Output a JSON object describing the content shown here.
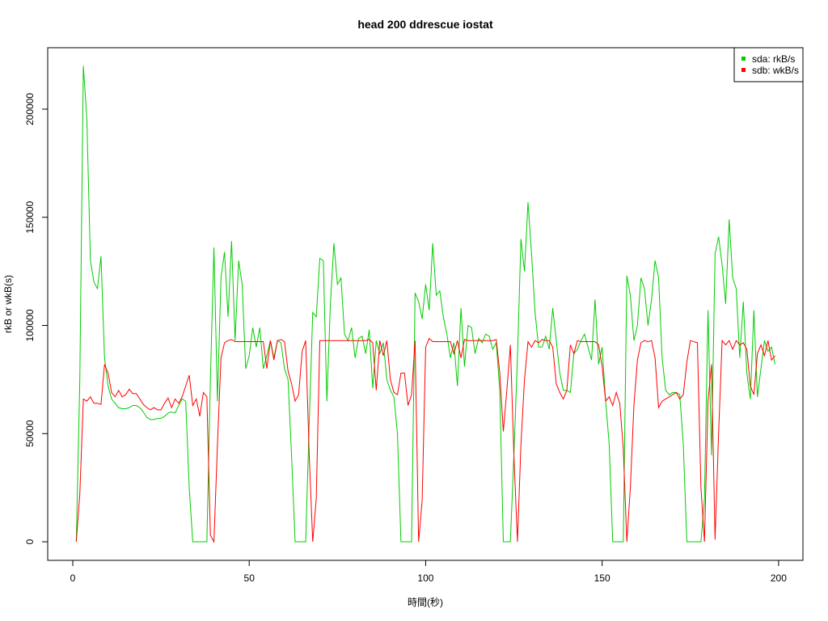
{
  "chart_data": {
    "type": "line",
    "title": "head 200 ddrescue iostat",
    "x_label": "時間(秒)",
    "y_label": "rkB or wkB(s)",
    "x": [
      1,
      2,
      3,
      4,
      5,
      6,
      7,
      8,
      9,
      10,
      11,
      12,
      13,
      14,
      15,
      16,
      17,
      18,
      19,
      20,
      21,
      22,
      23,
      24,
      25,
      26,
      27,
      28,
      29,
      30,
      31,
      32,
      33,
      34,
      35,
      36,
      37,
      38,
      39,
      40,
      41,
      42,
      43,
      44,
      45,
      46,
      47,
      48,
      49,
      50,
      51,
      52,
      53,
      54,
      55,
      56,
      57,
      58,
      59,
      60,
      61,
      62,
      63,
      64,
      65,
      66,
      67,
      68,
      69,
      70,
      71,
      72,
      73,
      74,
      75,
      76,
      77,
      78,
      79,
      80,
      81,
      82,
      83,
      84,
      85,
      86,
      87,
      88,
      89,
      90,
      91,
      92,
      93,
      94,
      95,
      96,
      97,
      98,
      99,
      100,
      101,
      102,
      103,
      104,
      105,
      106,
      107,
      108,
      109,
      110,
      111,
      112,
      113,
      114,
      115,
      116,
      117,
      118,
      119,
      120,
      121,
      122,
      123,
      124,
      125,
      126,
      127,
      128,
      129,
      130,
      131,
      132,
      133,
      134,
      135,
      136,
      137,
      138,
      139,
      140,
      141,
      142,
      143,
      144,
      145,
      146,
      147,
      148,
      149,
      150,
      151,
      152,
      153,
      154,
      155,
      156,
      157,
      158,
      159,
      160,
      161,
      162,
      163,
      164,
      165,
      166,
      167,
      168,
      169,
      170,
      171,
      172,
      173,
      174,
      175,
      176,
      177,
      178,
      179,
      180,
      181,
      182,
      183,
      184,
      185,
      186,
      187,
      188,
      189,
      190,
      191,
      192,
      193,
      194,
      195,
      196,
      197,
      198,
      199
    ],
    "series": [
      {
        "name": "sda: rkB/s",
        "color": "#00cd00",
        "values": [
          0,
          75000,
          220000,
          195000,
          130000,
          120000,
          117000,
          132000,
          85000,
          72000,
          66000,
          64000,
          62000,
          61500,
          61500,
          62000,
          63000,
          63000,
          62000,
          60000,
          57500,
          56500,
          56500,
          57000,
          57000,
          58000,
          59500,
          60000,
          59500,
          63000,
          66000,
          65000,
          25000,
          0,
          0,
          0,
          0,
          0,
          75000,
          136000,
          65000,
          122000,
          134000,
          104000,
          139000,
          93000,
          130000,
          119000,
          80000,
          86000,
          99000,
          90000,
          99000,
          80000,
          86000,
          93000,
          85000,
          93000,
          92000,
          80000,
          75000,
          40000,
          0,
          0,
          0,
          0,
          55000,
          106000,
          104000,
          131000,
          130000,
          65000,
          110000,
          138000,
          119000,
          122000,
          96000,
          93000,
          99000,
          85000,
          94000,
          95000,
          87000,
          98000,
          71000,
          93000,
          87000,
          92000,
          75000,
          70000,
          67000,
          50000,
          0,
          0,
          0,
          0,
          115000,
          111000,
          103000,
          119000,
          107000,
          138000,
          114000,
          116000,
          104000,
          96000,
          85000,
          92000,
          72000,
          108000,
          81000,
          100000,
          99000,
          87000,
          94000,
          92000,
          96000,
          95000,
          89000,
          92000,
          70000,
          0,
          0,
          0,
          40000,
          85000,
          140000,
          125000,
          157000,
          133000,
          106000,
          90000,
          90000,
          95000,
          89000,
          108000,
          93000,
          78000,
          70000,
          70000,
          69000,
          87000,
          89000,
          93000,
          96000,
          90000,
          84000,
          112000,
          82000,
          90000,
          65000,
          45000,
          0,
          0,
          0,
          0,
          123000,
          114000,
          93000,
          100000,
          122000,
          117000,
          100000,
          112000,
          130000,
          122000,
          85000,
          70000,
          68000,
          69000,
          69000,
          68000,
          45000,
          0,
          0,
          0,
          0,
          0,
          20000,
          107000,
          40000,
          133000,
          141000,
          128000,
          110000,
          149000,
          122000,
          117000,
          85000,
          111000,
          78000,
          66000,
          107000,
          67000,
          80000,
          93000,
          88000,
          90000,
          82000
        ]
      },
      {
        "name": "sdb: wkB/s",
        "color": "#ff0000",
        "values": [
          0,
          22000,
          66000,
          65000,
          67000,
          64000,
          64000,
          63500,
          82000,
          78000,
          69000,
          67000,
          70000,
          67000,
          68000,
          70500,
          68500,
          68500,
          66000,
          63500,
          62000,
          61000,
          62000,
          61000,
          61000,
          64000,
          66500,
          62000,
          66000,
          64000,
          67000,
          72000,
          77000,
          63000,
          66000,
          58000,
          69000,
          67000,
          3000,
          0,
          45000,
          85000,
          92000,
          93000,
          93500,
          92500,
          92500,
          92500,
          92500,
          92500,
          92500,
          92500,
          92500,
          92500,
          80000,
          93000,
          84000,
          93000,
          93500,
          92500,
          79000,
          73000,
          65000,
          68000,
          88000,
          93000,
          40000,
          0,
          20000,
          93000,
          93000,
          93000,
          93000,
          93000,
          93000,
          93000,
          93000,
          93000,
          93000,
          93000,
          93000,
          93000,
          93000,
          93500,
          92000,
          70000,
          93000,
          86000,
          93000,
          75000,
          69000,
          68000,
          78000,
          78000,
          63000,
          68000,
          93000,
          0,
          19000,
          90000,
          94000,
          92500,
          92500,
          92500,
          92500,
          92500,
          92500,
          87000,
          93000,
          85000,
          93500,
          93000,
          93000,
          93000,
          93000,
          93000,
          93000,
          93000,
          93000,
          93500,
          78000,
          51000,
          70000,
          91000,
          40000,
          0,
          45000,
          75000,
          92500,
          90000,
          93000,
          92000,
          93500,
          93000,
          93000,
          90000,
          73000,
          69000,
          66000,
          70000,
          91000,
          87000,
          93000,
          92500,
          92500,
          92500,
          92500,
          92500,
          91000,
          81000,
          65000,
          67000,
          63000,
          69000,
          64000,
          43000,
          0,
          25000,
          63000,
          84000,
          92000,
          93000,
          92500,
          93000,
          85000,
          62000,
          65000,
          66000,
          67000,
          68000,
          69000,
          66000,
          68000,
          83000,
          93000,
          92500,
          92000,
          25000,
          0,
          65000,
          82000,
          1000,
          50000,
          93000,
          91000,
          93000,
          89000,
          93000,
          91000,
          92000,
          89000,
          72000,
          68000,
          87000,
          91000,
          86000,
          93000,
          84000,
          86000
        ]
      }
    ],
    "xlim": [
      -7.1,
      206.9
    ],
    "xticks": [
      0,
      50,
      100,
      150,
      200
    ],
    "ylim": [
      -8600,
      228400
    ],
    "yticks": [
      0,
      50000,
      100000,
      150000,
      200000
    ],
    "legend": "top-right"
  }
}
